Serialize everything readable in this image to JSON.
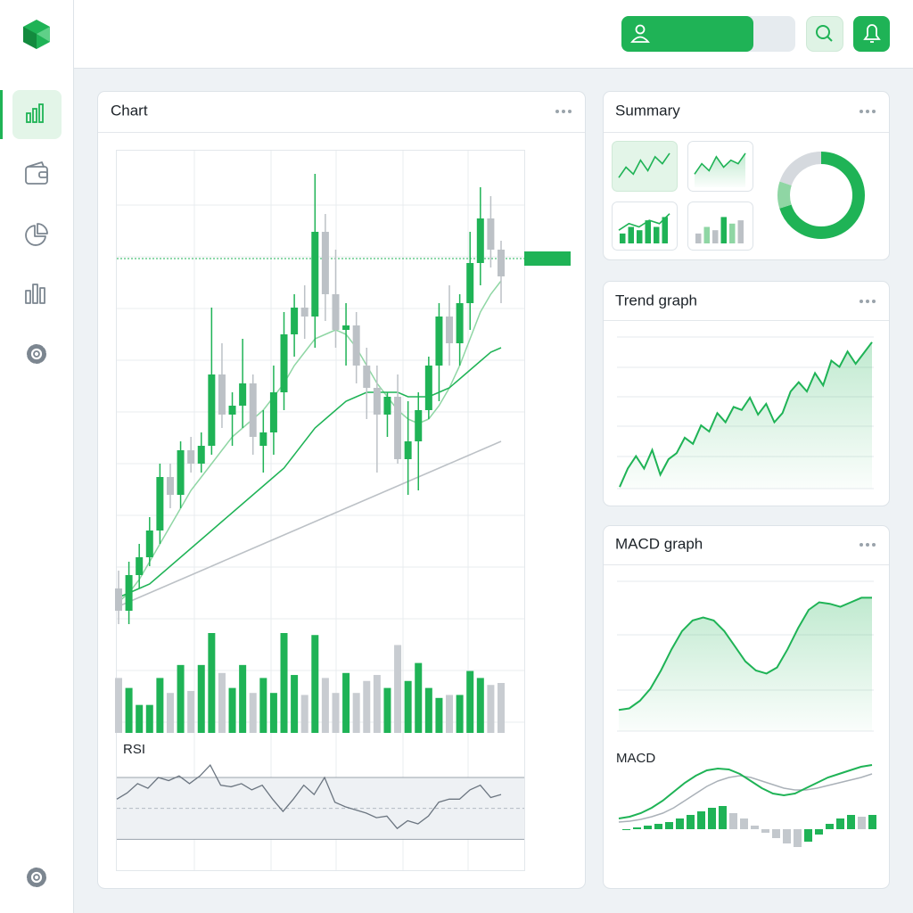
{
  "chart_panel": {
    "title": "Chart",
    "ylim": [
      0,
      110
    ],
    "candles": {
      "open": [
        12,
        7,
        15,
        19,
        25,
        37,
        33,
        43,
        40,
        44,
        60,
        51,
        53,
        58,
        44,
        47,
        56,
        69,
        75,
        73,
        92,
        78,
        70,
        71,
        62,
        57,
        51,
        55,
        41,
        45,
        52,
        62,
        73,
        67,
        76,
        85,
        95,
        88
      ],
      "high": [
        16,
        18,
        22,
        28,
        40,
        40,
        45,
        46,
        47,
        75,
        67,
        56,
        68,
        60,
        52,
        62,
        74,
        78,
        80,
        105,
        96,
        88,
        76,
        74,
        66,
        62,
        56,
        60,
        54,
        56,
        64,
        76,
        80,
        78,
        92,
        102,
        100,
        90
      ],
      "low": [
        4,
        4,
        12,
        17,
        22,
        30,
        30,
        38,
        38,
        42,
        48,
        44,
        48,
        42,
        38,
        42,
        52,
        64,
        68,
        66,
        72,
        66,
        62,
        58,
        50,
        38,
        46,
        40,
        33,
        34,
        50,
        54,
        62,
        62,
        70,
        80,
        84,
        76
      ],
      "close": [
        7,
        15,
        19,
        25,
        37,
        33,
        43,
        40,
        44,
        60,
        51,
        53,
        58,
        46,
        47,
        56,
        69,
        75,
        73,
        92,
        78,
        70,
        71,
        62,
        57,
        51,
        55,
        41,
        45,
        52,
        62,
        73,
        67,
        76,
        85,
        95,
        88,
        82
      ]
    },
    "moving_averages": [
      {
        "color": "#8fd6a4",
        "values": [
          9,
          11,
          14,
          18,
          22,
          26,
          30,
          34,
          37,
          40,
          43,
          46,
          48,
          50,
          52,
          55,
          58,
          62,
          65,
          68,
          69,
          70,
          69,
          66,
          62,
          58,
          55,
          52,
          50,
          49,
          50,
          53,
          57,
          62,
          68,
          74,
          78,
          81
        ]
      },
      {
        "color": "#1fb356",
        "values": [
          10,
          11,
          12,
          13,
          15,
          17,
          19,
          21,
          23,
          25,
          27,
          29,
          31,
          33,
          35,
          37,
          39,
          42,
          45,
          48,
          50,
          52,
          54,
          55,
          56,
          56,
          56,
          56,
          55,
          55,
          55,
          56,
          57,
          59,
          61,
          63,
          65,
          66
        ]
      },
      {
        "color": "#bcc1c6",
        "values": [
          8,
          9,
          10,
          11,
          12,
          13,
          14,
          15,
          16,
          17,
          18,
          19,
          20,
          21,
          22,
          23,
          24,
          25,
          26,
          27,
          28,
          29,
          30,
          31,
          32,
          33,
          34,
          35,
          36,
          37,
          38,
          39,
          40,
          41,
          42,
          43,
          44,
          45
        ]
      }
    ],
    "price_line": 86,
    "volume": {
      "ylim": [
        0,
        100
      ],
      "values": [
        55,
        45,
        28,
        28,
        55,
        40,
        68,
        42,
        68,
        100,
        60,
        45,
        68,
        40,
        55,
        40,
        100,
        58,
        38,
        98,
        55,
        40,
        60,
        40,
        52,
        58,
        45,
        88,
        52,
        70,
        45,
        35,
        38,
        38,
        62,
        55,
        48,
        50
      ]
    },
    "rsi": {
      "label": "RSI",
      "ylim": [
        10,
        100
      ],
      "levels": [
        30,
        50,
        70
      ],
      "values": [
        56,
        60,
        66,
        63,
        70,
        68,
        71,
        66,
        71,
        78,
        65,
        64,
        66,
        62,
        65,
        56,
        48,
        56,
        65,
        59,
        70,
        54,
        51,
        49,
        47,
        44,
        45,
        37,
        42,
        40,
        45,
        54,
        56,
        56,
        62,
        65,
        57,
        59
      ]
    }
  },
  "summary_panel": {
    "title": "Summary",
    "tiles": [
      {
        "kind": "line",
        "ylim": [
          0,
          10
        ],
        "values": [
          2,
          5,
          3,
          7,
          4,
          8,
          6,
          9
        ]
      },
      {
        "kind": "area",
        "ylim": [
          0,
          10
        ],
        "values": [
          3,
          6,
          4,
          8,
          5,
          7,
          6,
          9
        ]
      },
      {
        "kind": "bar_line",
        "ylim": [
          0,
          10
        ],
        "bars": [
          3,
          5,
          4,
          7,
          5,
          8
        ],
        "values": [
          4,
          6,
          5,
          7,
          6,
          9
        ]
      },
      {
        "kind": "bar",
        "ylim": [
          0,
          10
        ],
        "bars": [
          3,
          5,
          4,
          8,
          6,
          7
        ],
        "bar_colors": [
          "#bcc1c6",
          "#8fd6a4",
          "#bcc1c6",
          "#1fb356",
          "#8fd6a4",
          "#bcc1c6"
        ]
      }
    ],
    "donut": {
      "values": [
        70,
        10,
        20
      ],
      "colors": [
        "#1fb356",
        "#8fd6a4",
        "#d5d9de"
      ]
    }
  },
  "trend_panel": {
    "title": "Trend graph",
    "ylim": [
      0,
      110
    ],
    "values": [
      8,
      20,
      28,
      20,
      32,
      16,
      26,
      30,
      40,
      36,
      48,
      44,
      56,
      50,
      60,
      58,
      66,
      55,
      62,
      50,
      56,
      70,
      76,
      70,
      82,
      74,
      90,
      86,
      96,
      88,
      95,
      102
    ]
  },
  "macd_panel": {
    "title": "MACD graph",
    "ylim": [
      0,
      100
    ],
    "values": [
      14,
      15,
      20,
      28,
      40,
      54,
      66,
      73,
      75,
      73,
      66,
      56,
      46,
      40,
      38,
      42,
      54,
      68,
      80,
      85,
      84,
      82,
      85,
      88,
      88
    ],
    "label": "MACD",
    "macd_ylim": [
      -30,
      80
    ],
    "macd": [
      12,
      14,
      18,
      24,
      32,
      42,
      52,
      60,
      66,
      68,
      67,
      62,
      54,
      46,
      40,
      38,
      40,
      46,
      52,
      58,
      62,
      66,
      70,
      72
    ],
    "signal": [
      8,
      9,
      11,
      14,
      18,
      24,
      32,
      40,
      48,
      54,
      58,
      60,
      58,
      54,
      50,
      46,
      44,
      44,
      46,
      49,
      52,
      55,
      58,
      62
    ],
    "histogram": [
      0,
      2,
      4,
      6,
      8,
      12,
      16,
      20,
      24,
      26,
      18,
      12,
      4,
      -4,
      -10,
      -16,
      -20,
      -14,
      -6,
      6,
      12,
      16,
      14,
      16
    ]
  }
}
